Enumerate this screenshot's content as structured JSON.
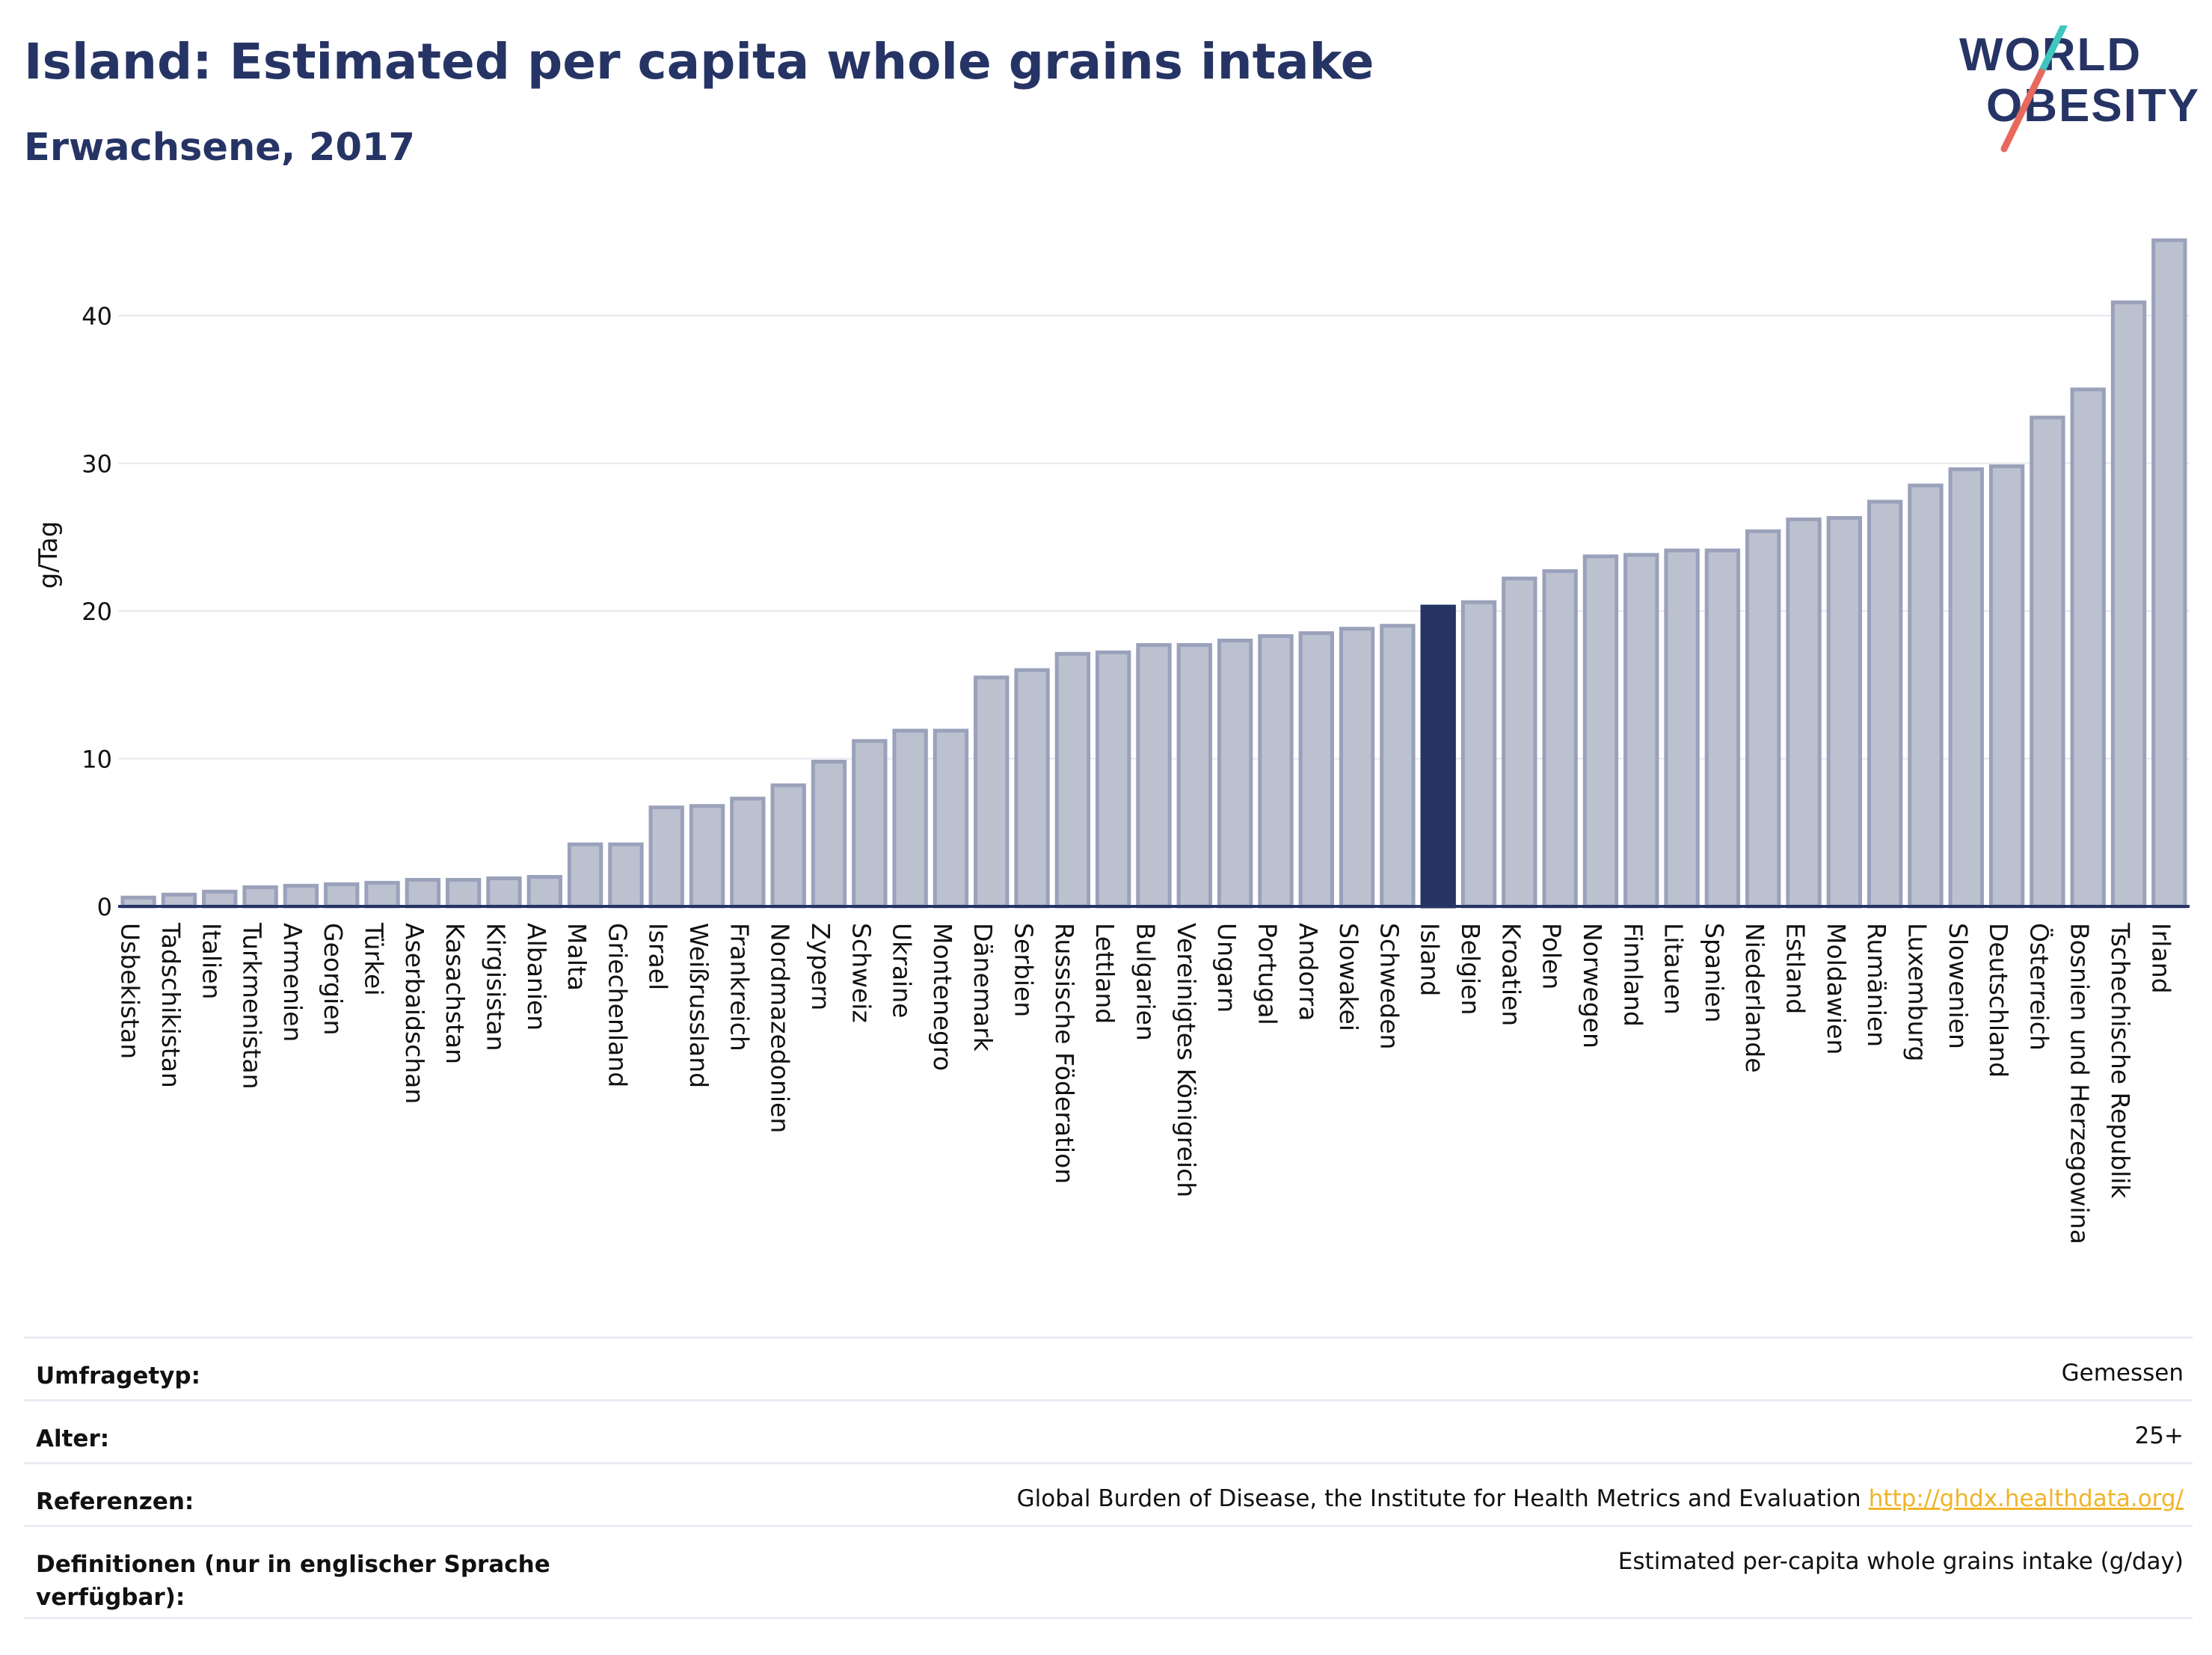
{
  "header": {
    "title": "Island: Estimated per capita whole grains intake",
    "subtitle": "Erwachsene, 2017"
  },
  "logo": {
    "line1": "WORLD",
    "line2": "OBESITY",
    "accent_colors": [
      "#3ec6c0",
      "#e8685d"
    ]
  },
  "colors": {
    "bar": "#bcc1cf",
    "bar_border": "#9aa1bb",
    "highlight": "#263465",
    "grid": "#e6e8ef",
    "axis": "#263465"
  },
  "chart_data": {
    "type": "bar",
    "ylabel": "g/Tag",
    "xlabel": "",
    "ylim": [
      0,
      46
    ],
    "yticks": [
      0,
      10,
      20,
      30,
      40
    ],
    "grid": true,
    "highlight": "Island",
    "categories": [
      "Usbekistan",
      "Tadschikistan",
      "Italien",
      "Turkmenistan",
      "Armenien",
      "Georgien",
      "Türkei",
      "Aserbaidschan",
      "Kasachstan",
      "Kirgisistan",
      "Albanien",
      "Malta",
      "Griechenland",
      "Israel",
      "Weißrussland",
      "Frankreich",
      "Nordmazedonien",
      "Zypern",
      "Schweiz",
      "Ukraine",
      "Montenegro",
      "Dänemark",
      "Serbien",
      "Russische Föderation",
      "Lettland",
      "Bulgarien",
      "Vereinigtes Königreich",
      "Ungarn",
      "Portugal",
      "Andorra",
      "Slowakei",
      "Schweden",
      "Island",
      "Belgien",
      "Kroatien",
      "Polen",
      "Norwegen",
      "Finnland",
      "Litauen",
      "Spanien",
      "Niederlande",
      "Estland",
      "Moldawien",
      "Rumänien",
      "Luxemburg",
      "Slowenien",
      "Deutschland",
      "Österreich",
      "Bosnien und Herzegowina",
      "Tschechische Republik",
      "Irland"
    ],
    "values": [
      0.6,
      0.8,
      1.0,
      1.3,
      1.4,
      1.5,
      1.6,
      1.8,
      1.8,
      1.9,
      2.0,
      4.2,
      4.2,
      6.7,
      6.8,
      7.3,
      8.2,
      9.8,
      11.2,
      11.9,
      11.9,
      15.5,
      16.0,
      17.1,
      17.2,
      17.7,
      17.7,
      18.0,
      18.3,
      18.5,
      18.8,
      19.0,
      20.3,
      20.6,
      22.2,
      22.7,
      23.7,
      23.8,
      24.1,
      24.1,
      25.4,
      26.2,
      26.3,
      27.4,
      28.5,
      29.6,
      29.8,
      33.1,
      35.0,
      40.9,
      45.1
    ]
  },
  "meta": [
    {
      "label": "Umfragetyp:",
      "value": "Gemessen"
    },
    {
      "label": "Alter:",
      "value": "25+"
    },
    {
      "label": "Referenzen:",
      "value": "Global Burden of Disease, the Institute for Health Metrics and Evaluation",
      "link": "http://ghdx.healthdata.org/"
    },
    {
      "label": "Definitionen (nur in englischer Sprache verfügbar):",
      "value": "Estimated per-capita whole grains intake (g/day)"
    }
  ]
}
